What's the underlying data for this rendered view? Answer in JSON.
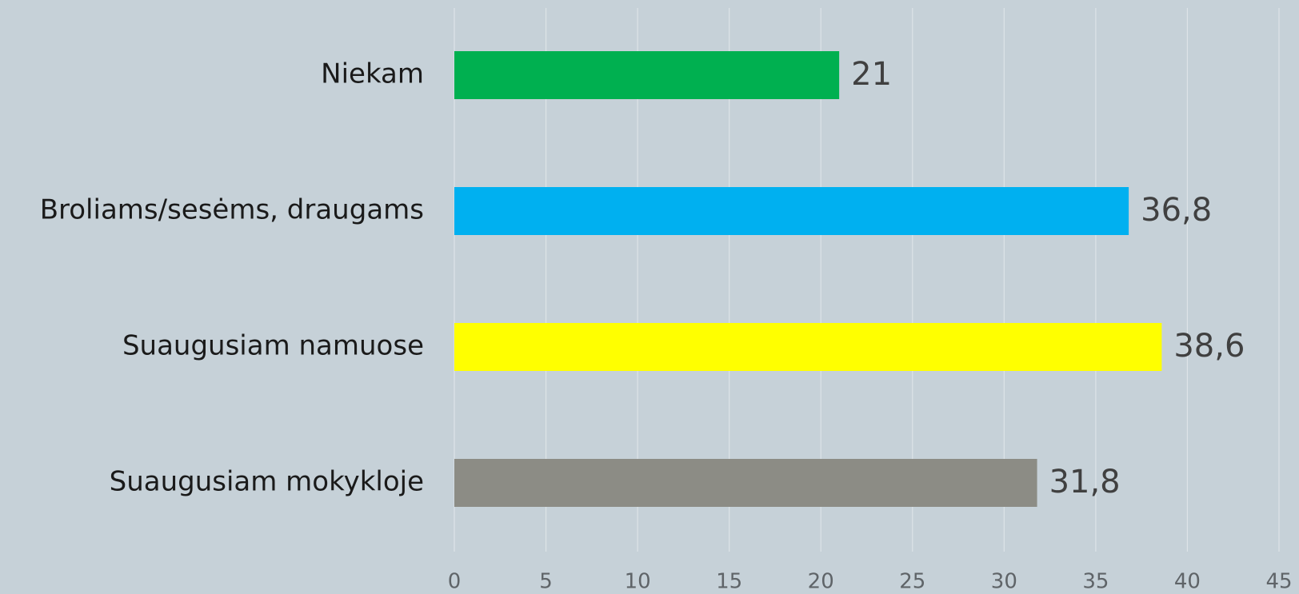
{
  "chart_data": {
    "type": "barh",
    "categories": [
      "Niekam",
      "Broliams/sesėms, draugams",
      "Suaugusiam namuose",
      "Suaugusiam mokykloje"
    ],
    "values": [
      21,
      36.8,
      38.6,
      31.8
    ],
    "value_labels": [
      "21",
      "36,8",
      "38,6",
      "31,8"
    ],
    "colors": [
      "#00b050",
      "#00b0f0",
      "#ffff00",
      "#8c8c85"
    ],
    "xlim": [
      0,
      45
    ],
    "xticks": [
      0,
      5,
      10,
      15,
      20,
      25,
      30,
      35,
      40,
      45
    ],
    "grid": true
  }
}
